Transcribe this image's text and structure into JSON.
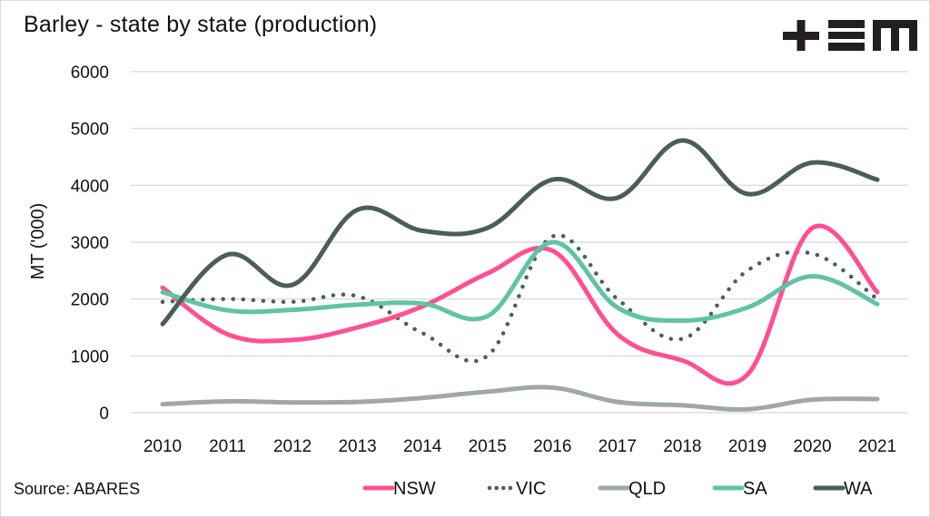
{
  "title": "Barley - state by state (production)",
  "source": "Source: ABARES",
  "logo": {
    "name": "tem-logo",
    "text": "+EM"
  },
  "chart_data": {
    "type": "line",
    "title": "Barley - state by state (production)",
    "xlabel": "",
    "ylabel": "MT ('000)",
    "ylim": [
      0,
      6000
    ],
    "yticks": [
      0,
      1000,
      2000,
      3000,
      4000,
      5000,
      6000
    ],
    "grid": true,
    "smooth": true,
    "legend_position": "bottom-right",
    "categories": [
      "2010",
      "2011",
      "2012",
      "2013",
      "2014",
      "2015",
      "2016",
      "2017",
      "2018",
      "2019",
      "2020",
      "2021"
    ],
    "series": [
      {
        "name": "NSW",
        "color": "#ff4f93",
        "style": "solid",
        "values": [
          2200,
          1380,
          1280,
          1500,
          1870,
          2450,
          2850,
          1380,
          920,
          670,
          3250,
          2120
        ]
      },
      {
        "name": "VIC",
        "color": "#4d5e5e",
        "style": "dotted",
        "values": [
          1950,
          2000,
          1950,
          2050,
          1400,
          1000,
          3100,
          2000,
          1300,
          2500,
          2800,
          2000
        ]
      },
      {
        "name": "QLD",
        "color": "#9ea8a7",
        "style": "solid",
        "values": [
          150,
          200,
          180,
          190,
          260,
          370,
          440,
          190,
          130,
          60,
          230,
          240
        ]
      },
      {
        "name": "SA",
        "color": "#5fc4a2",
        "style": "solid",
        "values": [
          2120,
          1800,
          1810,
          1900,
          1920,
          1700,
          3000,
          1850,
          1620,
          1850,
          2400,
          1910
        ]
      },
      {
        "name": "WA",
        "color": "#4a5d5d",
        "style": "solid",
        "values": [
          1560,
          2780,
          2250,
          3570,
          3200,
          3250,
          4100,
          3780,
          4790,
          3850,
          4400,
          4100
        ]
      }
    ]
  }
}
